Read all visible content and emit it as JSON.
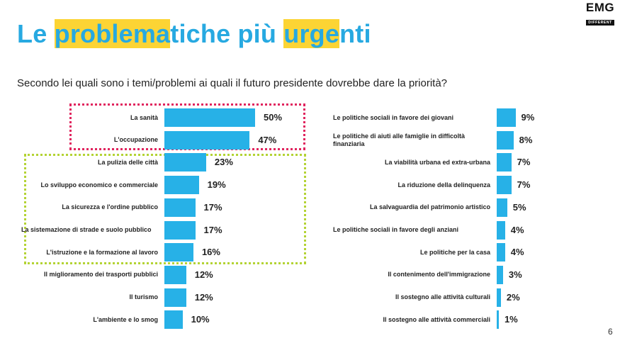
{
  "header": {
    "title_parts": [
      {
        "text": "Le ",
        "highlight": false
      },
      {
        "text": "problema",
        "highlight": true
      },
      {
        "text": "tiche più ",
        "highlight": false
      },
      {
        "text": "urge",
        "highlight": true
      },
      {
        "text": "nti",
        "highlight": false
      }
    ],
    "logo_main": "EMG",
    "logo_sub": "DIFFERENT"
  },
  "question": "Secondo lei quali sono i temi/problemi ai quali il futuro presidente dovrebbe dare la priorità?",
  "page_number": "6",
  "colors": {
    "title": "#27a9e1",
    "highlight": "#fcd434",
    "bar": "#27b1e7",
    "red_box": "#e0245e",
    "green_box": "#b4d334"
  },
  "chart_data": [
    {
      "type": "bar",
      "orientation": "horizontal",
      "title": "",
      "xlabel": "",
      "ylabel": "",
      "unit": "%",
      "xlim": [
        0,
        50
      ],
      "categories": [
        "La sanità",
        "L'occupazione",
        "La pulizia delle città",
        "Lo sviluppo economico e commerciale",
        "La sicurezza e l'ordine pubblico",
        "La sistemazione di strade e suolo pubblico",
        "L'istruzione e la formazione al lavoro",
        "Il miglioramento dei trasporti pubblici",
        "Il turismo",
        "L'ambiente e lo smog"
      ],
      "values": [
        50,
        47,
        23,
        19,
        17,
        17,
        16,
        12,
        12,
        10
      ],
      "labels": [
        "50%",
        "47%",
        "23%",
        "19%",
        "17%",
        "17%",
        "16%",
        "12%",
        "12%",
        "10%"
      ],
      "groups": [
        {
          "name": "red-highlight",
          "items": [
            0,
            1
          ]
        },
        {
          "name": "green-highlight",
          "items": [
            2,
            3,
            4,
            5,
            6
          ]
        }
      ]
    },
    {
      "type": "bar",
      "orientation": "horizontal",
      "title": "",
      "xlabel": "",
      "ylabel": "",
      "unit": "%",
      "xlim": [
        0,
        10
      ],
      "categories": [
        "Le politiche sociali in favore dei giovani",
        "Le politiche di aiuti alle famiglie in difficoltà finanziaria",
        "La viabilità urbana ed extra-urbana",
        "La riduzione della delinquenza",
        "La salvaguardia del patrimonio artistico",
        "Le politiche sociali in favore degli anziani",
        "Le politiche per la casa",
        "Il contenimento dell'immigrazione",
        "Il sostegno alle attività culturali",
        "Il sostegno alle attività commerciali"
      ],
      "values": [
        9,
        8,
        7,
        7,
        5,
        4,
        4,
        3,
        2,
        1
      ],
      "labels": [
        "9%",
        "8%",
        "7%",
        "7%",
        "5%",
        "4%",
        "4%",
        "3%",
        "2%",
        "1%"
      ]
    }
  ]
}
